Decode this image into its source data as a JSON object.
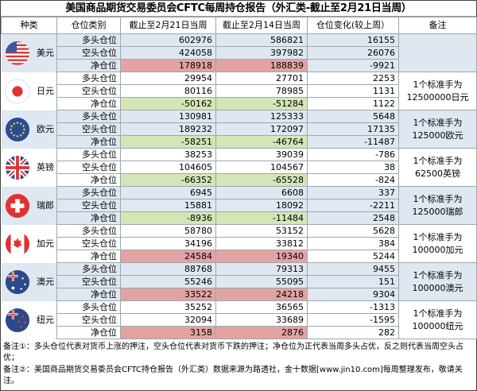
{
  "title": "美国商品期货交易委员会CFTC每周持仓报告（外汇类-截止至2月21日当周）",
  "headers": [
    "种类",
    "仓位类别",
    "截止至2月21日当周",
    "截止至2月14日当周",
    "仓位变化(较上周）",
    "备注"
  ],
  "row_labels": [
    "多头仓位",
    "空头仓位",
    "净仓位"
  ],
  "colors": {
    "positive_net": "#e3a3a3",
    "negative_net": "#d5e5b6",
    "band": "#dfe7f1"
  },
  "currencies": [
    {
      "name": "美元",
      "flag": "us-flag-icon",
      "note": "",
      "rows": [
        [
          "602976",
          "586821",
          "16155"
        ],
        [
          "424058",
          "397982",
          "26076"
        ],
        [
          "178918",
          "188839",
          "-9921"
        ]
      ]
    },
    {
      "name": "日元",
      "flag": "japan-flag-icon",
      "note": "1个标准手为12500000日元",
      "rows": [
        [
          "29954",
          "27701",
          "2253"
        ],
        [
          "80116",
          "78985",
          "1131"
        ],
        [
          "-50162",
          "-51284",
          "1122"
        ]
      ]
    },
    {
      "name": "欧元",
      "flag": "eu-flag-icon",
      "note": "1个标准手为125000欧元",
      "rows": [
        [
          "130981",
          "125333",
          "5648"
        ],
        [
          "189232",
          "172097",
          "17135"
        ],
        [
          "-58251",
          "-46764",
          "-11487"
        ]
      ]
    },
    {
      "name": "英镑",
      "flag": "uk-flag-icon",
      "note": "1个标准手为62500英镑",
      "rows": [
        [
          "38253",
          "39039",
          "-786"
        ],
        [
          "104605",
          "104567",
          "38"
        ],
        [
          "-66352",
          "-65528",
          "-824"
        ]
      ]
    },
    {
      "name": "瑞郎",
      "flag": "swiss-flag-icon",
      "note": "1个标准手为125000瑞郎",
      "rows": [
        [
          "6945",
          "6608",
          "337"
        ],
        [
          "15881",
          "18092",
          "-2211"
        ],
        [
          "-8936",
          "-11484",
          "2548"
        ]
      ]
    },
    {
      "name": "加元",
      "flag": "canada-flag-icon",
      "note": "1个标准手为100000加元",
      "rows": [
        [
          "58780",
          "53152",
          "5628"
        ],
        [
          "34196",
          "33812",
          "384"
        ],
        [
          "24584",
          "19340",
          "5244"
        ]
      ]
    },
    {
      "name": "澳元",
      "flag": "australia-flag-icon",
      "note": "1个标准手为100000澳元",
      "rows": [
        [
          "88768",
          "79313",
          "9455"
        ],
        [
          "55246",
          "55095",
          "151"
        ],
        [
          "33522",
          "24218",
          "9304"
        ]
      ]
    },
    {
      "name": "纽元",
      "flag": "nz-flag-icon",
      "note": "1个标准手为100000纽元",
      "rows": [
        [
          "35252",
          "36565",
          "-1313"
        ],
        [
          "32094",
          "33689",
          "-1595"
        ],
        [
          "3158",
          "2876",
          "282"
        ]
      ]
    }
  ],
  "footer": [
    "备注①：多头仓位代表对货币上涨的押注，空头仓位代表对货币下跌的押注；净仓位为正代表当周多头占优，反之则代表当周空头占优；",
    "备注②：美国商品期货交易委员会CFTC持仓报告（外汇类）数据来源为路透社，金十数据[www.jin10.com]每周整理发布，敬请关注。"
  ]
}
